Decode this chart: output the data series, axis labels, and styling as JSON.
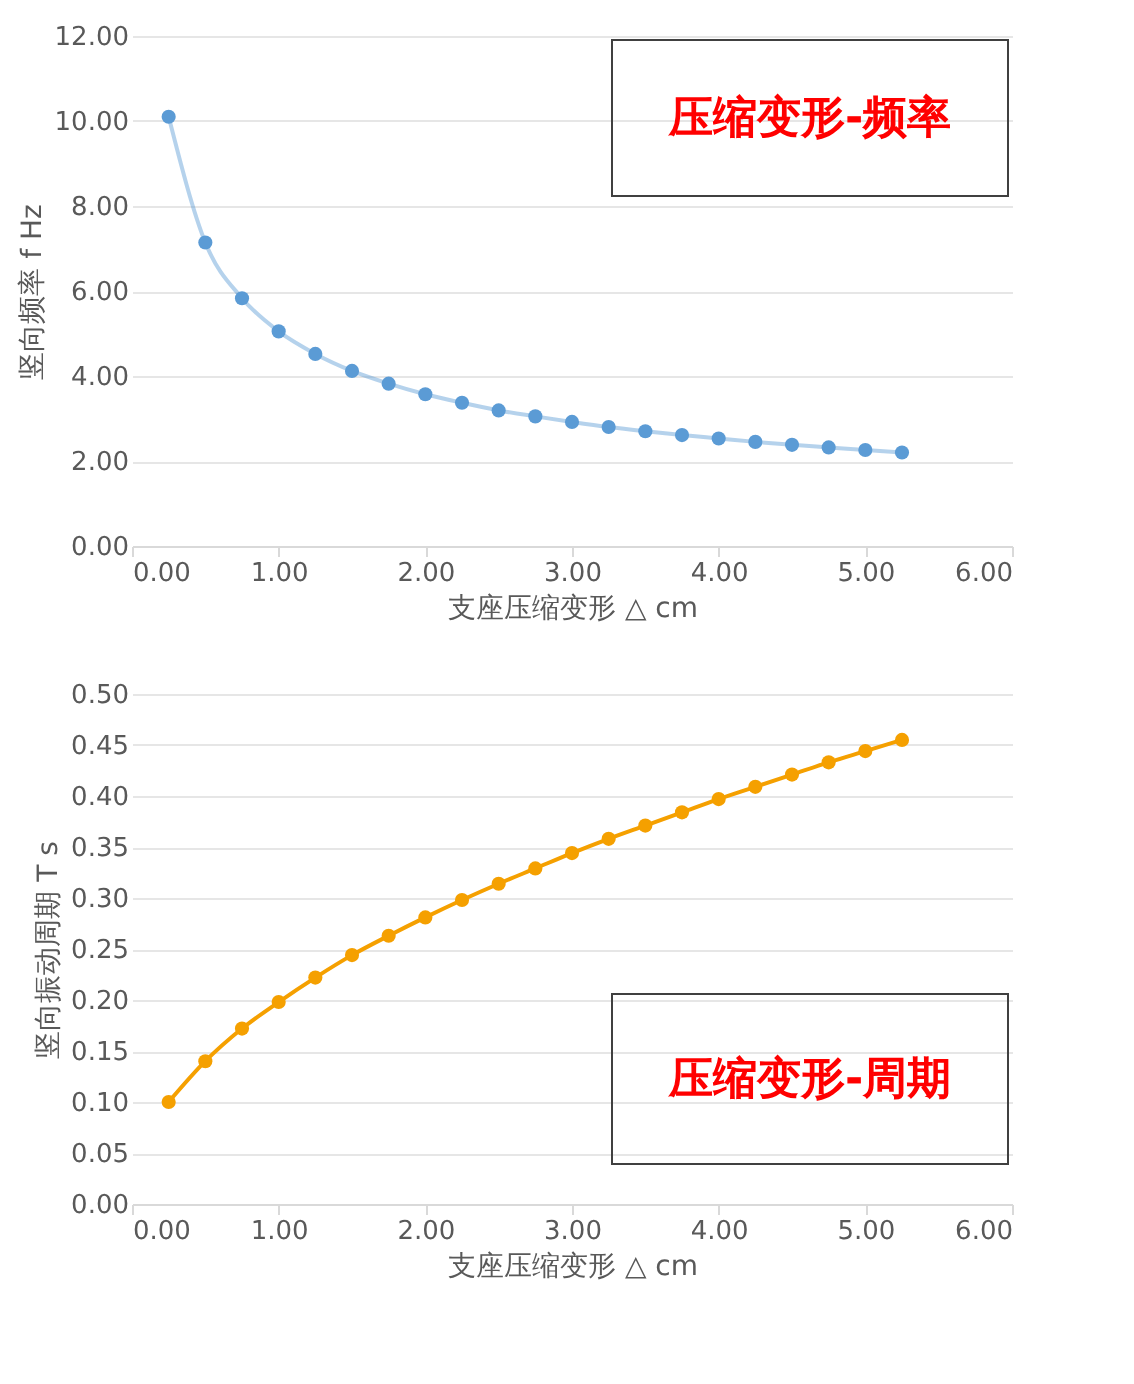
{
  "chart_data": [
    {
      "type": "line",
      "title": "压缩变形-频率",
      "xlabel": "支座压缩变形 △ cm",
      "ylabel": "竖向频率 f Hz",
      "marker": "circle",
      "grid": "y",
      "x": [
        0.25,
        0.5,
        0.75,
        1.0,
        1.25,
        1.5,
        1.75,
        2.0,
        2.25,
        2.5,
        2.75,
        3.0,
        3.25,
        3.5,
        3.75,
        4.0,
        4.25,
        4.5,
        4.75,
        5.0,
        5.25
      ],
      "series": [
        {
          "color": "#5b9bd5",
          "values": [
            10.1,
            7.14,
            5.83,
            5.05,
            4.52,
            4.12,
            3.82,
            3.57,
            3.37,
            3.19,
            3.05,
            2.92,
            2.8,
            2.7,
            2.61,
            2.53,
            2.45,
            2.38,
            2.32,
            2.26,
            2.2
          ]
        }
      ],
      "xlim": [
        0,
        6
      ],
      "xticks": [
        {
          "value": 0,
          "label": "0.00"
        },
        {
          "value": 1,
          "label": "1.00"
        },
        {
          "value": 2,
          "label": "2.00"
        },
        {
          "value": 3,
          "label": "3.00"
        },
        {
          "value": 4,
          "label": "4.00"
        },
        {
          "value": 5,
          "label": "5.00"
        },
        {
          "value": 6,
          "label": "6.00"
        }
      ],
      "ylim": [
        0,
        12
      ],
      "yticks": [
        {
          "value": 0,
          "label": "0.00"
        },
        {
          "value": 2,
          "label": "2.00"
        },
        {
          "value": 4,
          "label": "4.00"
        },
        {
          "value": 6,
          "label": "6.00"
        },
        {
          "value": 8,
          "label": "8.00"
        },
        {
          "value": 10,
          "label": "10.00"
        },
        {
          "value": 12,
          "label": "12.00"
        }
      ]
    },
    {
      "type": "line",
      "title": "压缩变形-周期",
      "xlabel": "支座压缩变形 △ cm",
      "ylabel": "竖向振动周期 T s",
      "marker": "circle",
      "grid": "y",
      "x": [
        0.25,
        0.5,
        0.75,
        1.0,
        1.25,
        1.5,
        1.75,
        2.0,
        2.25,
        2.5,
        2.75,
        3.0,
        3.25,
        3.5,
        3.75,
        4.0,
        4.25,
        4.5,
        4.75,
        5.0,
        5.25
      ],
      "series": [
        {
          "color": "#f5a000",
          "values": [
            0.1,
            0.14,
            0.172,
            0.198,
            0.222,
            0.244,
            0.263,
            0.281,
            0.298,
            0.314,
            0.329,
            0.344,
            0.358,
            0.371,
            0.384,
            0.397,
            0.409,
            0.421,
            0.433,
            0.444,
            0.455
          ]
        }
      ],
      "xlim": [
        0,
        6
      ],
      "xticks": [
        {
          "value": 0,
          "label": "0.00"
        },
        {
          "value": 1,
          "label": "1.00"
        },
        {
          "value": 2,
          "label": "2.00"
        },
        {
          "value": 3,
          "label": "3.00"
        },
        {
          "value": 4,
          "label": "4.00"
        },
        {
          "value": 5,
          "label": "5.00"
        },
        {
          "value": 6,
          "label": "6.00"
        }
      ],
      "ylim": [
        0,
        0.5
      ],
      "yticks": [
        {
          "value": 0,
          "label": "0.00"
        },
        {
          "value": 0.05,
          "label": "0.05"
        },
        {
          "value": 0.1,
          "label": "0.10"
        },
        {
          "value": 0.15,
          "label": "0.15"
        },
        {
          "value": 0.2,
          "label": "0.20"
        },
        {
          "value": 0.25,
          "label": "0.25"
        },
        {
          "value": 0.3,
          "label": "0.30"
        },
        {
          "value": 0.35,
          "label": "0.35"
        },
        {
          "value": 0.4,
          "label": "0.40"
        },
        {
          "value": 0.45,
          "label": "0.45"
        },
        {
          "value": 0.5,
          "label": "0.50"
        }
      ]
    }
  ]
}
